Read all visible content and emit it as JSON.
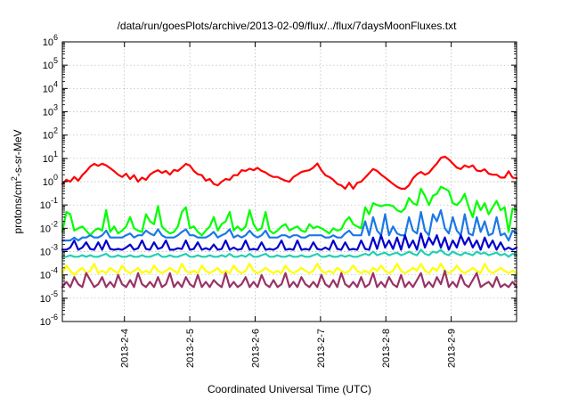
{
  "chart_data": {
    "type": "line",
    "title": "/data/run/goesPlots/archive/2013-02-09/flux/../flux/7daysMoonFluxes.txt",
    "xlabel": "Coordinated Universal Time (UTC)",
    "ylabel_base": "protons/cm",
    "ylabel_sup": "2",
    "ylabel_rest": "-s-sr-MeV",
    "x_ticks": [
      "2013-2-4",
      "2013-2-5",
      "2013-2-6",
      "2013-2-7",
      "2013-2-8",
      "2013-2-9"
    ],
    "x_tick_days": [
      4,
      5,
      6,
      7,
      8,
      9
    ],
    "xlim_days": [
      3.05,
      10.0
    ],
    "y_scale": "log",
    "ylim": [
      1e-06,
      1000000.0
    ],
    "y_ticks": [
      {
        "base": "10",
        "exp": "-6"
      },
      {
        "base": "10",
        "exp": "-5"
      },
      {
        "base": "10",
        "exp": "-4"
      },
      {
        "base": "10",
        "exp": "-3"
      },
      {
        "base": "10",
        "exp": "-2"
      },
      {
        "base": "10",
        "exp": "-1"
      },
      {
        "base": "10",
        "exp": "0"
      },
      {
        "base": "10",
        "exp": "1"
      },
      {
        "base": "10",
        "exp": "2"
      },
      {
        "base": "10",
        "exp": "3"
      },
      {
        "base": "10",
        "exp": "4"
      },
      {
        "base": "10",
        "exp": "5"
      },
      {
        "base": "10",
        "exp": "6"
      }
    ],
    "grid": true,
    "series": [
      {
        "color": "#ff0000",
        "y": [
          0.8,
          1.2,
          1.0,
          1.6,
          1.1,
          1.9,
          2.8,
          4.5,
          5.8,
          4.8,
          5.9,
          5.0,
          3.8,
          2.8,
          2.0,
          1.6,
          2.2,
          1.3,
          1.9,
          1.0,
          1.5,
          1.2,
          2.0,
          2.6,
          3.1,
          2.4,
          2.9,
          2.0,
          3.2,
          2.9,
          4.0,
          5.8,
          4.9,
          2.9,
          2.1,
          1.9,
          1.1,
          1.3,
          0.8,
          0.7,
          1.0,
          1.3,
          1.2,
          1.9,
          1.9,
          3.1,
          2.9,
          3.6,
          3.1,
          3.9,
          2.9,
          2.5,
          1.9,
          1.6,
          1.6,
          1.3,
          1.1,
          1.0,
          1.6,
          2.0,
          2.6,
          2.9,
          3.1,
          4.0,
          6.0,
          3.1,
          1.9,
          1.6,
          1.2,
          0.8,
          0.7,
          0.5,
          0.9,
          0.5,
          0.9,
          1.0,
          1.5,
          2.3,
          3.5,
          2.9,
          2.0,
          1.5,
          1.1,
          0.8,
          0.6,
          0.5,
          0.5,
          0.7,
          1.4,
          2.1,
          2.6,
          2.0,
          2.4,
          3.9,
          6.0,
          10.5,
          12.0,
          9.0,
          6.0,
          4.0,
          3.5,
          5.0,
          4.2,
          5.0,
          3.0,
          2.8,
          3.4,
          2.2,
          2.0,
          2.0,
          1.5,
          1.5,
          2.8,
          1.5,
          1.4
        ]
      },
      {
        "color": "#00ff00",
        "y": [
          0.007,
          0.05,
          0.04,
          0.008,
          0.01,
          0.012,
          0.008,
          0.005,
          0.008,
          0.01,
          0.008,
          0.06,
          0.007,
          0.012,
          0.006,
          0.008,
          0.012,
          0.03,
          0.01,
          0.008,
          0.007,
          0.04,
          0.02,
          0.015,
          0.09,
          0.012,
          0.008,
          0.006,
          0.007,
          0.012,
          0.05,
          0.08,
          0.01,
          0.012,
          0.007,
          0.005,
          0.008,
          0.012,
          0.03,
          0.008,
          0.015,
          0.02,
          0.05,
          0.008,
          0.012,
          0.008,
          0.012,
          0.06,
          0.015,
          0.008,
          0.01,
          0.05,
          0.008,
          0.006,
          0.008,
          0.012,
          0.015,
          0.008,
          0.01,
          0.012,
          0.008,
          0.007,
          0.015,
          0.01,
          0.012,
          0.01,
          0.008,
          0.006,
          0.01,
          0.008,
          0.009,
          0.02,
          0.03,
          0.015,
          0.012,
          0.01,
          0.08,
          0.04,
          0.12,
          0.1,
          0.09,
          0.1,
          0.1,
          0.09,
          0.06,
          0.05,
          0.07,
          0.2,
          0.12,
          0.1,
          0.5,
          0.25,
          0.1,
          0.25,
          0.3,
          0.6,
          0.5,
          0.4,
          0.12,
          0.1,
          0.15,
          0.3,
          0.08,
          0.03,
          0.15,
          0.06,
          0.12,
          0.04,
          0.08,
          0.15,
          0.06,
          0.08,
          0.007,
          0.07,
          0.06
        ]
      },
      {
        "color": "#1a78e6",
        "y": [
          0.003,
          0.003,
          0.003,
          0.004,
          0.003,
          0.004,
          0.004,
          0.005,
          0.004,
          0.004,
          0.005,
          0.008,
          0.004,
          0.004,
          0.004,
          0.004,
          0.005,
          0.006,
          0.004,
          0.005,
          0.005,
          0.008,
          0.006,
          0.005,
          0.009,
          0.005,
          0.004,
          0.004,
          0.004,
          0.005,
          0.007,
          0.009,
          0.005,
          0.005,
          0.004,
          0.004,
          0.004,
          0.005,
          0.007,
          0.004,
          0.005,
          0.006,
          0.009,
          0.004,
          0.005,
          0.004,
          0.005,
          0.008,
          0.005,
          0.004,
          0.005,
          0.008,
          0.004,
          0.004,
          0.004,
          0.005,
          0.005,
          0.004,
          0.005,
          0.005,
          0.004,
          0.004,
          0.005,
          0.005,
          0.005,
          0.005,
          0.004,
          0.004,
          0.005,
          0.004,
          0.004,
          0.006,
          0.008,
          0.005,
          0.005,
          0.005,
          0.02,
          0.005,
          0.03,
          0.008,
          0.005,
          0.04,
          0.005,
          0.012,
          0.006,
          0.005,
          0.005,
          0.03,
          0.008,
          0.006,
          0.05,
          0.008,
          0.005,
          0.04,
          0.02,
          0.06,
          0.01,
          0.006,
          0.03,
          0.008,
          0.005,
          0.04,
          0.006,
          0.005,
          0.03,
          0.007,
          0.02,
          0.005,
          0.006,
          0.03,
          0.005,
          0.006,
          0.003,
          0.008,
          0.006
        ]
      },
      {
        "color": "#0000cc",
        "y": [
          0.0012,
          0.0012,
          0.0015,
          0.003,
          0.0012,
          0.0015,
          0.0025,
          0.0013,
          0.0012,
          0.0025,
          0.0012,
          0.003,
          0.0013,
          0.0012,
          0.0013,
          0.0012,
          0.0015,
          0.002,
          0.0012,
          0.0014,
          0.003,
          0.0013,
          0.0012,
          0.0025,
          0.0013,
          0.0015,
          0.003,
          0.0012,
          0.0012,
          0.0014,
          0.0013,
          0.003,
          0.0012,
          0.0013,
          0.0025,
          0.0012,
          0.0014,
          0.0012,
          0.002,
          0.0012,
          0.0013,
          0.003,
          0.0012,
          0.0015,
          0.0012,
          0.0013,
          0.003,
          0.0012,
          0.0013,
          0.0012,
          0.0025,
          0.0012,
          0.0013,
          0.0012,
          0.0015,
          0.003,
          0.0012,
          0.0013,
          0.0012,
          0.003,
          0.0012,
          0.0013,
          0.0012,
          0.0025,
          0.0013,
          0.0012,
          0.0015,
          0.0012,
          0.003,
          0.0013,
          0.0012,
          0.0025,
          0.0012,
          0.0013,
          0.0012,
          0.003,
          0.0013,
          0.0012,
          0.004,
          0.0013,
          0.005,
          0.0015,
          0.003,
          0.0013,
          0.004,
          0.0012,
          0.005,
          0.0015,
          0.003,
          0.0012,
          0.006,
          0.0015,
          0.004,
          0.002,
          0.005,
          0.0015,
          0.004,
          0.0012,
          0.003,
          0.0015,
          0.005,
          0.002,
          0.004,
          0.0015,
          0.003,
          0.0012,
          0.004,
          0.0015,
          0.003,
          0.0012,
          0.0025,
          0.0012,
          0.0015,
          0.0012,
          0.0015
        ]
      },
      {
        "color": "#22d0b4",
        "y": [
          0.0006,
          0.0006,
          0.0007,
          0.0006,
          0.0006,
          0.0007,
          0.0006,
          0.0007,
          0.0006,
          0.0006,
          0.0007,
          0.0008,
          0.0006,
          0.0006,
          0.0007,
          0.0006,
          0.0006,
          0.0007,
          0.0006,
          0.0006,
          0.0007,
          0.0006,
          0.0006,
          0.0007,
          0.0008,
          0.0006,
          0.0006,
          0.0007,
          0.0006,
          0.0006,
          0.0007,
          0.0008,
          0.0006,
          0.0006,
          0.0007,
          0.0006,
          0.0006,
          0.0007,
          0.0006,
          0.0006,
          0.0007,
          0.0006,
          0.0008,
          0.0006,
          0.0006,
          0.0007,
          0.0006,
          0.0008,
          0.0006,
          0.0006,
          0.0007,
          0.0008,
          0.0006,
          0.0006,
          0.0007,
          0.0006,
          0.0006,
          0.0007,
          0.0006,
          0.0006,
          0.0007,
          0.0006,
          0.0006,
          0.0007,
          0.0008,
          0.0006,
          0.0006,
          0.0007,
          0.0006,
          0.0006,
          0.0007,
          0.0006,
          0.0007,
          0.0006,
          0.0006,
          0.0007,
          0.0008,
          0.0007,
          0.001,
          0.0007,
          0.0008,
          0.0009,
          0.0007,
          0.0008,
          0.0009,
          0.0007,
          0.0008,
          0.001,
          0.0008,
          0.0007,
          0.0012,
          0.0008,
          0.0007,
          0.001,
          0.0009,
          0.0012,
          0.0008,
          0.0007,
          0.001,
          0.0008,
          0.0007,
          0.0009,
          0.0008,
          0.0007,
          0.001,
          0.0008,
          0.0009,
          0.0007,
          0.0008,
          0.0009,
          0.0007,
          0.0008,
          0.0006,
          0.0008,
          0.0007
        ]
      },
      {
        "color": "#ffff00",
        "y": [
          0.00012,
          0.00025,
          0.00015,
          0.0001,
          0.00015,
          0.0002,
          0.00012,
          0.00015,
          0.0003,
          0.00012,
          0.00015,
          0.00012,
          0.0002,
          0.00015,
          0.00012,
          0.00025,
          0.00015,
          0.00012,
          0.00015,
          0.0002,
          0.00012,
          0.00015,
          0.00012,
          0.00025,
          0.00015,
          0.00012,
          0.00015,
          0.0002,
          0.00015,
          0.00012,
          0.0003,
          0.00015,
          0.00012,
          0.00015,
          0.00012,
          0.00025,
          0.00015,
          0.00012,
          0.00015,
          0.0002,
          0.00012,
          0.00015,
          0.00012,
          0.00025,
          0.00015,
          0.00012,
          0.00015,
          0.0003,
          0.00015,
          0.00012,
          0.00015,
          0.0002,
          0.00015,
          0.00012,
          0.00015,
          0.00012,
          0.00025,
          0.00015,
          0.00012,
          0.00015,
          0.0002,
          0.00015,
          0.00012,
          0.00015,
          0.0003,
          0.00015,
          0.00012,
          0.00015,
          0.00012,
          0.0002,
          0.00015,
          0.00012,
          0.00015,
          0.00025,
          0.00015,
          0.00012,
          0.00015,
          0.00012,
          0.0002,
          0.00015,
          0.00025,
          0.00015,
          0.00012,
          0.00015,
          0.0003,
          0.00015,
          0.00012,
          0.00015,
          0.0002,
          0.00015,
          0.0003,
          0.00015,
          0.00012,
          0.0002,
          0.00015,
          0.0003,
          0.00015,
          0.00012,
          0.00015,
          0.00025,
          0.00015,
          0.00012,
          0.00015,
          0.0002,
          0.00015,
          0.00012,
          0.0003,
          0.00015,
          0.00012,
          0.00015,
          0.0002,
          0.00015,
          0.00012,
          0.00015,
          0.00012
        ]
      },
      {
        "color": "#993366",
        "y": [
          3e-05,
          5e-05,
          3e-05,
          8e-05,
          4e-05,
          3e-05,
          0.00012,
          6e-05,
          3e-05,
          4e-05,
          8e-05,
          3e-05,
          5e-05,
          3e-05,
          0.0001,
          4e-05,
          3e-05,
          6e-05,
          3e-05,
          0.00012,
          4e-05,
          3e-05,
          5e-05,
          3e-05,
          8e-05,
          3e-05,
          4e-05,
          0.00012,
          3e-05,
          5e-05,
          3e-05,
          8e-05,
          4e-05,
          3e-05,
          0.0001,
          3e-05,
          5e-05,
          3e-05,
          6e-05,
          4e-05,
          3e-05,
          0.00012,
          3e-05,
          5e-05,
          3e-05,
          4e-05,
          8e-05,
          3e-05,
          5e-05,
          3e-05,
          0.0001,
          4e-05,
          3e-05,
          6e-05,
          3e-05,
          4e-05,
          0.00012,
          3e-05,
          5e-05,
          3e-05,
          8e-05,
          4e-05,
          3e-05,
          5e-05,
          3e-05,
          0.0001,
          4e-05,
          3e-05,
          6e-05,
          3e-05,
          0.00012,
          4e-05,
          3e-05,
          5e-05,
          3e-05,
          8e-05,
          3e-05,
          4e-05,
          0.00012,
          3e-05,
          5e-05,
          3e-05,
          8e-05,
          4e-05,
          3e-05,
          0.0001,
          3e-05,
          5e-05,
          3e-05,
          6e-05,
          0.00012,
          3e-05,
          5e-05,
          3e-05,
          8e-05,
          4e-05,
          0.00015,
          3e-05,
          5e-05,
          3e-05,
          0.0001,
          4e-05,
          3e-05,
          6e-05,
          0.00012,
          3e-05,
          4e-05,
          5e-05,
          3e-05,
          8e-05,
          3e-05,
          4e-05,
          3e-05,
          5e-05,
          3e-05
        ]
      }
    ]
  }
}
